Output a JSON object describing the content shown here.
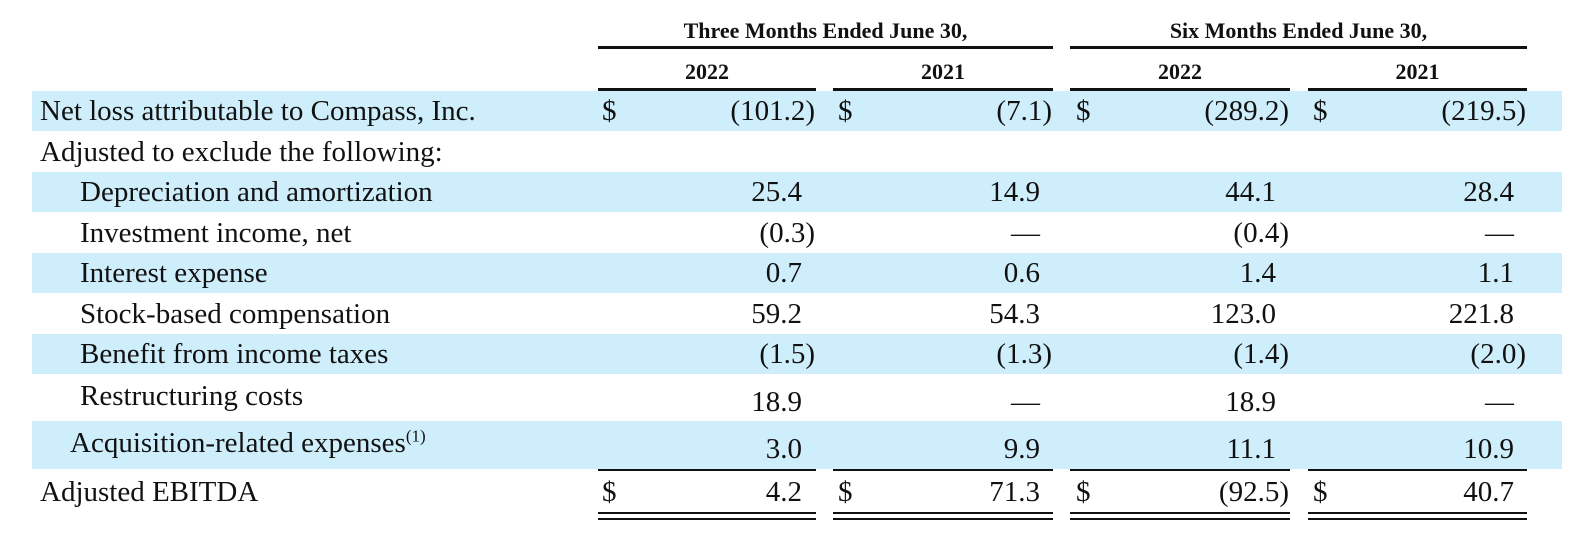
{
  "header": {
    "group1": "Three Months Ended June 30,",
    "group2": "Six Months Ended June 30,",
    "years": [
      "2022",
      "2021",
      "2022",
      "2021"
    ]
  },
  "currency_symbol": "$",
  "rows": [
    {
      "label": "Net loss attributable to Compass, Inc.",
      "values": [
        "(101.2)",
        "(7.1)",
        "(289.2)",
        "(219.5)"
      ]
    },
    {
      "label": "Adjusted to exclude the following:",
      "values": [
        "",
        "",
        "",
        ""
      ]
    },
    {
      "label": "Depreciation and amortization",
      "values": [
        "25.4",
        "14.9",
        "44.1",
        "28.4"
      ]
    },
    {
      "label": "Investment income, net",
      "values": [
        "(0.3)",
        "—",
        "(0.4)",
        "—"
      ]
    },
    {
      "label": "Interest expense",
      "values": [
        "0.7",
        "0.6",
        "1.4",
        "1.1"
      ]
    },
    {
      "label": "Stock-based compensation",
      "values": [
        "59.2",
        "54.3",
        "123.0",
        "221.8"
      ]
    },
    {
      "label": "Benefit from income taxes",
      "values": [
        "(1.5)",
        "(1.3)",
        "(1.4)",
        "(2.0)"
      ]
    },
    {
      "label": "Restructuring costs",
      "values": [
        "18.9",
        "—",
        "18.9",
        "—"
      ]
    },
    {
      "label": "Acquisition-related expenses",
      "footnote": "(1)",
      "values": [
        "3.0",
        "9.9",
        "11.1",
        "10.9"
      ]
    },
    {
      "label": "Adjusted EBITDA",
      "values": [
        "4.2",
        "71.3",
        "(92.5)",
        "40.7"
      ]
    }
  ]
}
